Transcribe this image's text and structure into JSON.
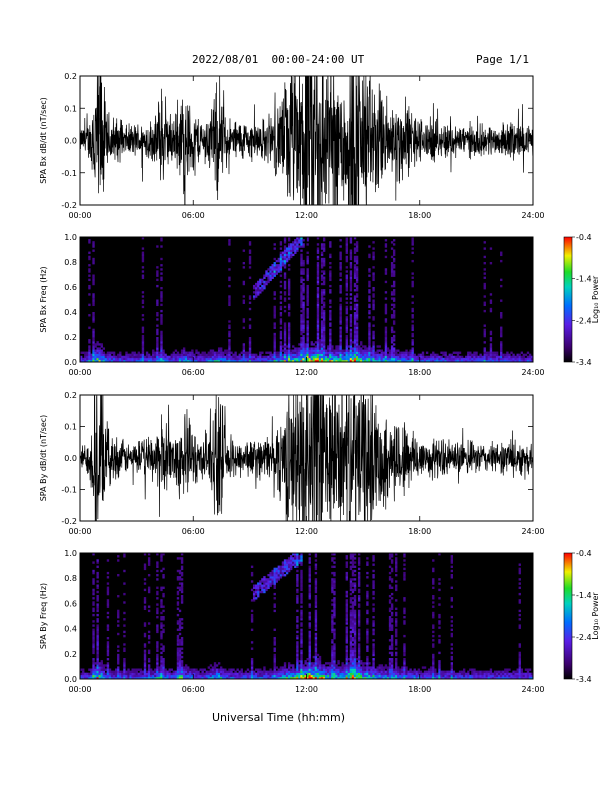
{
  "header": {
    "title": "2022/08/01  00:00-24:00 UT",
    "page": "Page 1/1"
  },
  "xlabel": "Universal Time (hh:mm)",
  "chart_data": [
    {
      "type": "line",
      "ylabel": "SPA Bx dB/dt (nT/sec)",
      "ylim": [
        -0.2,
        0.2
      ],
      "yticks": [
        "-0.2",
        "-0.1",
        "0.0",
        "0.1",
        "0.2"
      ],
      "xlim": [
        0,
        24
      ],
      "xticks": [
        "00:00",
        "06:00",
        "12:00",
        "18:00",
        "24:00"
      ],
      "activity": [
        [
          0,
          0.03
        ],
        [
          0.5,
          0.05
        ],
        [
          1.0,
          0.3
        ],
        [
          1.4,
          0.08
        ],
        [
          2.5,
          0.04
        ],
        [
          4.0,
          0.06
        ],
        [
          4.2,
          0.14
        ],
        [
          4.6,
          0.08
        ],
        [
          5.0,
          0.06
        ],
        [
          5.5,
          0.15
        ],
        [
          5.8,
          0.1
        ],
        [
          6.5,
          0.05
        ],
        [
          7.0,
          0.1
        ],
        [
          7.3,
          0.16
        ],
        [
          7.8,
          0.06
        ],
        [
          9.0,
          0.05
        ],
        [
          10.0,
          0.06
        ],
        [
          10.5,
          0.1
        ],
        [
          11.0,
          0.18
        ],
        [
          11.5,
          0.2
        ],
        [
          12.0,
          0.3
        ],
        [
          12.6,
          0.35
        ],
        [
          13.0,
          0.22
        ],
        [
          14.0,
          0.2
        ],
        [
          14.5,
          0.3
        ],
        [
          15.0,
          0.22
        ],
        [
          15.5,
          0.17
        ],
        [
          16.5,
          0.1
        ],
        [
          17.0,
          0.12
        ],
        [
          18.0,
          0.06
        ],
        [
          20.0,
          0.045
        ],
        [
          22.0,
          0.04
        ],
        [
          23.0,
          0.05
        ],
        [
          24.0,
          0.035
        ]
      ]
    },
    {
      "type": "heatmap",
      "ylabel": "SPA Bx Freq (Hz)",
      "ylim": [
        0.0,
        1.0
      ],
      "yticks": [
        "0.0",
        "0.2",
        "0.4",
        "0.6",
        "0.8",
        "1.0"
      ],
      "xlim": [
        0,
        24
      ],
      "xticks": [
        "00:00",
        "06:00",
        "12:00",
        "18:00",
        "24:00"
      ],
      "colorbar": {
        "label": "Log₁₀ Power",
        "ticks": [
          "-0.4",
          "-1.4",
          "-2.4",
          "-3.4"
        ],
        "range": [
          -3.4,
          -0.4
        ]
      },
      "feature": {
        "start_hr": 9.2,
        "end_hr": 11.8,
        "freq_start": 0.55,
        "freq_end": 1.0
      }
    },
    {
      "type": "line",
      "ylabel": "SPA By dB/dt (nT/sec)",
      "ylim": [
        -0.2,
        0.2
      ],
      "yticks": [
        "-0.2",
        "-0.1",
        "0.0",
        "0.1",
        "0.2"
      ],
      "xlim": [
        0,
        24
      ],
      "xticks": [
        "00:00",
        "06:00",
        "12:00",
        "18:00",
        "24:00"
      ],
      "activity": [
        [
          0,
          0.03
        ],
        [
          0.5,
          0.05
        ],
        [
          1.0,
          0.3
        ],
        [
          1.4,
          0.08
        ],
        [
          2.5,
          0.04
        ],
        [
          4.0,
          0.06
        ],
        [
          4.2,
          0.14
        ],
        [
          4.6,
          0.08
        ],
        [
          5.0,
          0.06
        ],
        [
          5.5,
          0.15
        ],
        [
          5.8,
          0.1
        ],
        [
          6.5,
          0.05
        ],
        [
          7.0,
          0.12
        ],
        [
          7.3,
          0.18
        ],
        [
          7.8,
          0.06
        ],
        [
          9.0,
          0.05
        ],
        [
          10.0,
          0.06
        ],
        [
          10.5,
          0.1
        ],
        [
          11.0,
          0.18
        ],
        [
          11.5,
          0.2
        ],
        [
          12.0,
          0.3
        ],
        [
          12.6,
          0.35
        ],
        [
          13.0,
          0.22
        ],
        [
          14.0,
          0.2
        ],
        [
          14.5,
          0.3
        ],
        [
          15.0,
          0.22
        ],
        [
          15.5,
          0.17
        ],
        [
          16.5,
          0.1
        ],
        [
          17.0,
          0.12
        ],
        [
          18.0,
          0.06
        ],
        [
          20.0,
          0.045
        ],
        [
          22.0,
          0.04
        ],
        [
          23.0,
          0.05
        ],
        [
          24.0,
          0.035
        ]
      ]
    },
    {
      "type": "heatmap",
      "ylabel": "SPA By Freq (Hz)",
      "ylim": [
        0.0,
        1.0
      ],
      "yticks": [
        "0.0",
        "0.2",
        "0.4",
        "0.6",
        "0.8",
        "1.0"
      ],
      "xlim": [
        0,
        24
      ],
      "xticks": [
        "00:00",
        "06:00",
        "12:00",
        "18:00",
        "24:00"
      ],
      "colorbar": {
        "label": "Log₁₀ Power",
        "ticks": [
          "-0.4",
          "-1.4",
          "-2.4",
          "-3.4"
        ],
        "range": [
          -3.4,
          -0.4
        ]
      },
      "feature": {
        "start_hr": 9.2,
        "end_hr": 11.8,
        "freq_start": 0.68,
        "freq_end": 1.0
      }
    }
  ]
}
